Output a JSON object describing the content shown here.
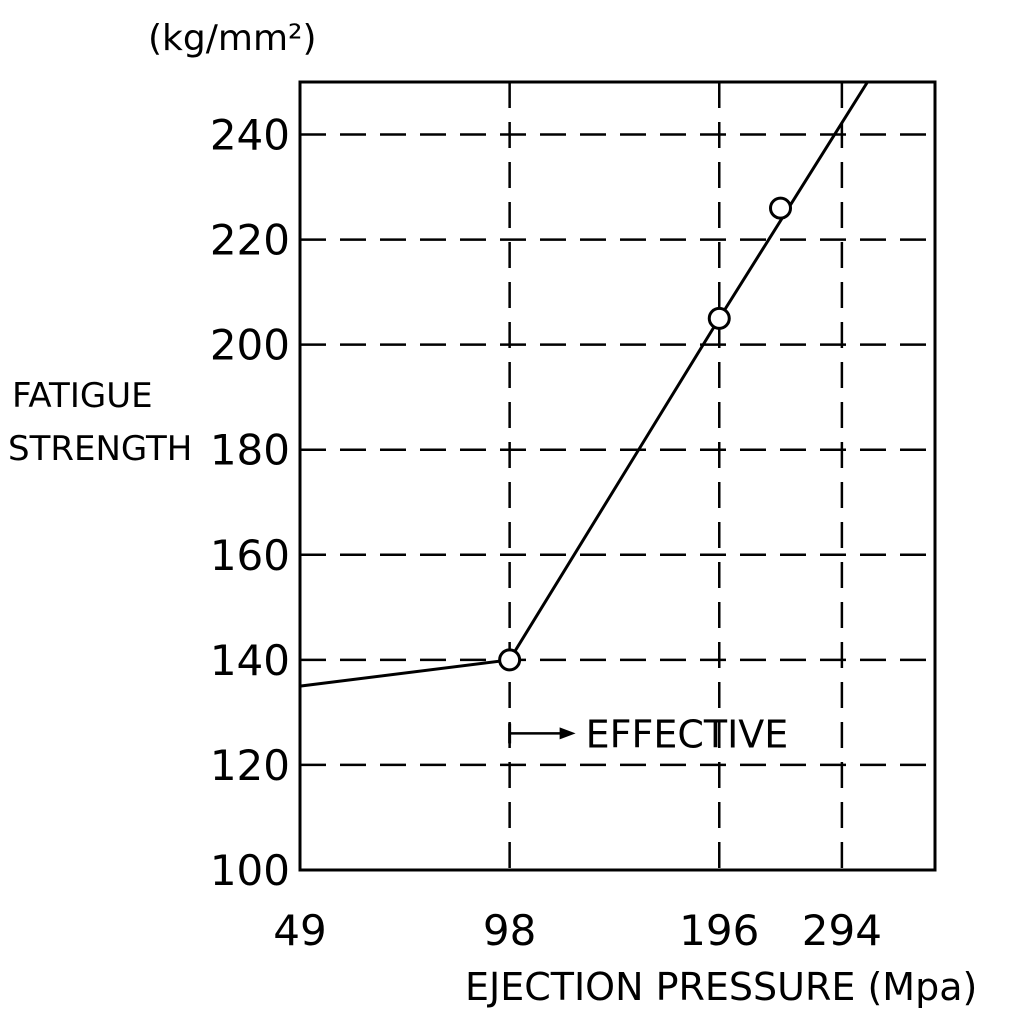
{
  "chart_data": {
    "type": "line",
    "unit_label": "(kg/mm²)",
    "ylabel": [
      "FATIGUE",
      "STRENGTH"
    ],
    "xlabel": "EJECTION PRESSURE (Mpa)",
    "x_scale": "log",
    "x_ticks": [
      49,
      98,
      196,
      294
    ],
    "x_range": [
      49,
      400
    ],
    "y_ticks": [
      100,
      120,
      140,
      160,
      180,
      200,
      220,
      240
    ],
    "y_range": [
      100,
      250
    ],
    "grid": "dashed",
    "series": [
      {
        "line": [
          [
            49,
            135
          ],
          [
            98,
            140
          ],
          [
            196,
            205
          ],
          [
            320,
            250
          ]
        ],
        "markers": [
          [
            98,
            140
          ],
          [
            196,
            205
          ],
          [
            240,
            226
          ]
        ]
      }
    ],
    "annotation": {
      "text": "EFFECTIVE",
      "x": 98,
      "y": 126
    }
  }
}
